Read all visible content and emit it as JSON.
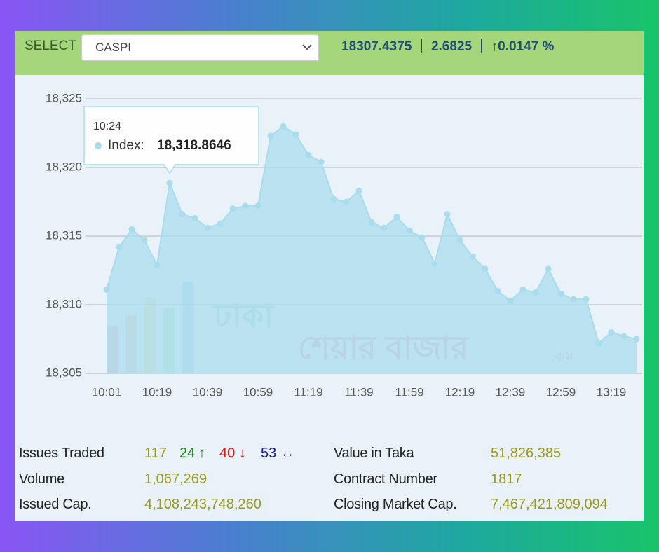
{
  "header": {
    "select_label": "SELECT",
    "selected": "CASPI",
    "index_value": 18307.4375,
    "change": 2.6825,
    "change_symbol": "↑",
    "change_percent": 0.0147,
    "change_percent_label": "0.0147 %"
  },
  "watermark": {
    "line1": "ঢাকা",
    "line2": "শেয়ার বাজার",
    "suffix": ".কম"
  },
  "chart_data": {
    "type": "area",
    "color": "#a9dcec",
    "categories": [
      "10:01",
      null,
      null,
      null,
      "10:19",
      null,
      null,
      null,
      "10:39",
      null,
      null,
      null,
      "10:59",
      null,
      null,
      null,
      "11:19",
      null,
      null,
      null,
      "11:39",
      null,
      null,
      null,
      "11:59",
      null,
      null,
      null,
      "12:19",
      null,
      null,
      null,
      "12:39",
      null,
      null,
      null,
      "12:59",
      null,
      null,
      null,
      "13:19",
      null,
      null
    ],
    "series": [
      {
        "name": "Index",
        "color": "#a9dcec",
        "values": [
          18311.1,
          18314.2,
          18315.5,
          18314.7,
          18312.9,
          18318.8646,
          18316.6,
          18316.3,
          18315.6,
          18315.9,
          18317.0,
          18317.2,
          18317.2,
          18322.3,
          18323.0,
          18322.4,
          18320.9,
          18320.4,
          18317.7,
          18317.5,
          18318.3,
          18316.0,
          18315.6,
          18316.4,
          18315.4,
          18314.9,
          18313.0,
          18316.6,
          18314.7,
          18313.5,
          18312.6,
          18311.0,
          18310.3,
          18311.1,
          18310.9,
          18312.6,
          18310.8,
          18310.4,
          18310.4,
          18307.2,
          18308.0,
          18307.7,
          18307.5
        ]
      }
    ],
    "ylim": [
      18305,
      18325
    ],
    "yticks": [
      {
        "value": 18305,
        "label": "18,305"
      },
      {
        "value": 18310,
        "label": "18,310"
      },
      {
        "value": 18315,
        "label": "18,315"
      },
      {
        "value": 18320,
        "label": "18,320"
      },
      {
        "value": 18325,
        "label": "18,325"
      }
    ],
    "grid": true,
    "tooltip": {
      "x": "10:24",
      "label": "Index:",
      "index": 5,
      "value_label": "18,318.8646"
    }
  },
  "stats": {
    "issues_traded": {
      "label": "Issues Traded",
      "total": 117,
      "advanced": 24,
      "advanced_symbol": "↑",
      "declined": 40,
      "declined_symbol": "↓",
      "unchanged": 53,
      "unchanged_symbol": "↔"
    },
    "items": [
      {
        "label": "Value in Taka",
        "value": 51826385,
        "value_label": "51,826,385"
      },
      {
        "label": "Volume",
        "value": 1067269,
        "value_label": "1,067,269"
      },
      {
        "label": "Contract Number",
        "value": 1817
      },
      {
        "label": "Issued Cap.",
        "value": 4108243748260,
        "value_label": "4,108,243,748,260"
      },
      {
        "label": "Closing Market Cap.",
        "value": 7467421809094,
        "value_label": "7,467,421,809,094"
      }
    ]
  }
}
